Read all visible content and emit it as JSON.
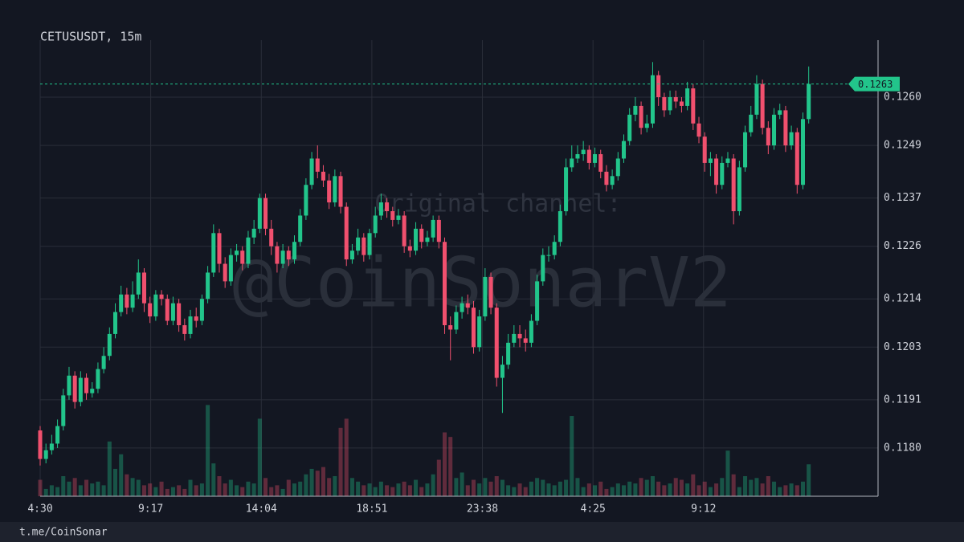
{
  "chart_data": {
    "type": "candlestick",
    "title": "CETUSUSDT, 15m",
    "watermark": [
      "Original channel:",
      "@CoinSonarV2"
    ],
    "footer": "t.me/CoinSonar",
    "up_color": "#22c58b",
    "down_color": "#f0506e",
    "grid": true,
    "xlim": [
      0,
      145
    ],
    "xticks": [
      {
        "value": 0,
        "label": "4:30"
      },
      {
        "value": 19.13,
        "label": "9:17"
      },
      {
        "value": 38.27,
        "label": "14:04"
      },
      {
        "value": 57.4,
        "label": "18:51"
      },
      {
        "value": 76.53,
        "label": "23:38"
      },
      {
        "value": 95.67,
        "label": "4:25"
      },
      {
        "value": 114.8,
        "label": "9:12"
      }
    ],
    "ylim": [
      0.1169,
      0.1273
    ],
    "yticks": [
      {
        "value": 0.118,
        "label": "0.1180"
      },
      0.1191,
      0.1203,
      0.1214,
      0.1226,
      0.1237,
      0.1249,
      {
        "value": 0.126,
        "label": "0.1260"
      }
    ],
    "y2lim": [
      0,
      500
    ],
    "last_price": 0.1263,
    "ohlc": [
      [
        0.1184,
        0.1185,
        0.1176,
        0.11775
      ],
      [
        0.11775,
        0.1181,
        0.11765,
        0.11795
      ],
      [
        0.11795,
        0.1183,
        0.11785,
        0.1181
      ],
      [
        0.1181,
        0.11865,
        0.118,
        0.1185
      ],
      [
        0.1185,
        0.11935,
        0.1184,
        0.1192
      ],
      [
        0.1192,
        0.11985,
        0.1191,
        0.11965
      ],
      [
        0.11965,
        0.11975,
        0.1189,
        0.11905
      ],
      [
        0.11905,
        0.11975,
        0.11895,
        0.1196
      ],
      [
        0.1196,
        0.1197,
        0.1191,
        0.11925
      ],
      [
        0.11925,
        0.1195,
        0.11915,
        0.11935
      ],
      [
        0.11935,
        0.11995,
        0.11925,
        0.1198
      ],
      [
        0.1198,
        0.1203,
        0.1197,
        0.1201
      ],
      [
        0.1201,
        0.12075,
        0.12,
        0.1206
      ],
      [
        0.1206,
        0.1213,
        0.1205,
        0.1211
      ],
      [
        0.1211,
        0.1217,
        0.121,
        0.1215
      ],
      [
        0.1215,
        0.12165,
        0.12105,
        0.1212
      ],
      [
        0.1212,
        0.1218,
        0.1211,
        0.1215
      ],
      [
        0.1215,
        0.1223,
        0.1214,
        0.122
      ],
      [
        0.122,
        0.1221,
        0.1211,
        0.1213
      ],
      [
        0.1213,
        0.12145,
        0.12085,
        0.121
      ],
      [
        0.121,
        0.1216,
        0.1209,
        0.1215
      ],
      [
        0.1215,
        0.1216,
        0.12125,
        0.1214
      ],
      [
        0.1214,
        0.1215,
        0.1208,
        0.1209
      ],
      [
        0.1209,
        0.12145,
        0.1208,
        0.1213
      ],
      [
        0.1213,
        0.1214,
        0.12065,
        0.1208
      ],
      [
        0.1208,
        0.12095,
        0.12045,
        0.1206
      ],
      [
        0.1206,
        0.12115,
        0.1205,
        0.121
      ],
      [
        0.121,
        0.1212,
        0.12075,
        0.1209
      ],
      [
        0.1209,
        0.1215,
        0.1208,
        0.1214
      ],
      [
        0.1214,
        0.12215,
        0.1213,
        0.122
      ],
      [
        0.122,
        0.1231,
        0.1219,
        0.1229
      ],
      [
        0.1229,
        0.123,
        0.122,
        0.1222
      ],
      [
        0.1222,
        0.12235,
        0.12165,
        0.1218
      ],
      [
        0.1218,
        0.12255,
        0.1217,
        0.1224
      ],
      [
        0.1224,
        0.12265,
        0.12225,
        0.1225
      ],
      [
        0.1225,
        0.1226,
        0.12205,
        0.1222
      ],
      [
        0.1222,
        0.12295,
        0.1221,
        0.1228
      ],
      [
        0.1228,
        0.1232,
        0.12265,
        0.123
      ],
      [
        0.123,
        0.1238,
        0.1229,
        0.1237
      ],
      [
        0.1237,
        0.1238,
        0.12285,
        0.123
      ],
      [
        0.123,
        0.1232,
        0.1224,
        0.1226
      ],
      [
        0.1226,
        0.1227,
        0.122,
        0.1222
      ],
      [
        0.1222,
        0.12265,
        0.1221,
        0.1225
      ],
      [
        0.1225,
        0.1226,
        0.12215,
        0.1223
      ],
      [
        0.1223,
        0.12285,
        0.1222,
        0.1227
      ],
      [
        0.1227,
        0.12345,
        0.1226,
        0.1233
      ],
      [
        0.1233,
        0.12415,
        0.1232,
        0.124
      ],
      [
        0.124,
        0.12475,
        0.1239,
        0.1246
      ],
      [
        0.1246,
        0.1249,
        0.12415,
        0.1243
      ],
      [
        0.1243,
        0.12445,
        0.12395,
        0.1241
      ],
      [
        0.1241,
        0.12425,
        0.12345,
        0.1236
      ],
      [
        0.1236,
        0.12435,
        0.1235,
        0.1242
      ],
      [
        0.1242,
        0.1243,
        0.12335,
        0.1235
      ],
      [
        0.1235,
        0.1236,
        0.12215,
        0.1223
      ],
      [
        0.1223,
        0.12265,
        0.1222,
        0.1225
      ],
      [
        0.1225,
        0.123,
        0.1224,
        0.1228
      ],
      [
        0.1228,
        0.1229,
        0.12225,
        0.1224
      ],
      [
        0.1224,
        0.123,
        0.1223,
        0.1229
      ],
      [
        0.1229,
        0.1235,
        0.1228,
        0.1233
      ],
      [
        0.1233,
        0.1238,
        0.1232,
        0.1236
      ],
      [
        0.1236,
        0.1237,
        0.12325,
        0.1234
      ],
      [
        0.1234,
        0.1235,
        0.12305,
        0.1232
      ],
      [
        0.1232,
        0.12345,
        0.1231,
        0.1233
      ],
      [
        0.1233,
        0.1234,
        0.12245,
        0.1226
      ],
      [
        0.1226,
        0.12275,
        0.12235,
        0.1225
      ],
      [
        0.1225,
        0.12315,
        0.1224,
        0.123
      ],
      [
        0.123,
        0.1231,
        0.12255,
        0.1227
      ],
      [
        0.1227,
        0.12295,
        0.1226,
        0.1228
      ],
      [
        0.1228,
        0.1233,
        0.1227,
        0.1232
      ],
      [
        0.1232,
        0.1233,
        0.12255,
        0.1227
      ],
      [
        0.1227,
        0.1228,
        0.1206,
        0.1208
      ],
      [
        0.1208,
        0.121,
        0.12,
        0.1207
      ],
      [
        0.1207,
        0.12125,
        0.1206,
        0.1211
      ],
      [
        0.1211,
        0.12145,
        0.12095,
        0.1213
      ],
      [
        0.1213,
        0.1215,
        0.12105,
        0.1212
      ],
      [
        0.1212,
        0.12135,
        0.12015,
        0.1203
      ],
      [
        0.1203,
        0.12115,
        0.1202,
        0.121
      ],
      [
        0.121,
        0.1221,
        0.1209,
        0.1219
      ],
      [
        0.1219,
        0.122,
        0.12105,
        0.1212
      ],
      [
        0.1212,
        0.1213,
        0.1194,
        0.1196
      ],
      [
        0.1196,
        0.1201,
        0.1188,
        0.1199
      ],
      [
        0.1199,
        0.1206,
        0.1198,
        0.1204
      ],
      [
        0.1204,
        0.1208,
        0.1203,
        0.1206
      ],
      [
        0.1206,
        0.1208,
        0.1203,
        0.1205
      ],
      [
        0.1205,
        0.1207,
        0.1202,
        0.1204
      ],
      [
        0.1204,
        0.12105,
        0.1203,
        0.1209
      ],
      [
        0.1209,
        0.12195,
        0.1208,
        0.1218
      ],
      [
        0.1218,
        0.12255,
        0.1217,
        0.1224
      ],
      [
        0.1224,
        0.1226,
        0.12225,
        0.1224
      ],
      [
        0.1224,
        0.12285,
        0.1223,
        0.1227
      ],
      [
        0.1227,
        0.12355,
        0.1226,
        0.1234
      ],
      [
        0.1234,
        0.1246,
        0.1233,
        0.1244
      ],
      [
        0.1244,
        0.1249,
        0.1243,
        0.1246
      ],
      [
        0.1246,
        0.1249,
        0.1245,
        0.1247
      ],
      [
        0.1247,
        0.125,
        0.12455,
        0.1248
      ],
      [
        0.1248,
        0.1249,
        0.12435,
        0.1245
      ],
      [
        0.1245,
        0.12485,
        0.1244,
        0.1247
      ],
      [
        0.1247,
        0.1248,
        0.12415,
        0.1243
      ],
      [
        0.1243,
        0.12445,
        0.12385,
        0.124
      ],
      [
        0.124,
        0.12435,
        0.1239,
        0.1242
      ],
      [
        0.1242,
        0.12475,
        0.1241,
        0.1246
      ],
      [
        0.1246,
        0.12515,
        0.1245,
        0.125
      ],
      [
        0.125,
        0.12575,
        0.1249,
        0.1256
      ],
      [
        0.1256,
        0.126,
        0.12545,
        0.1258
      ],
      [
        0.1258,
        0.1259,
        0.12515,
        0.1253
      ],
      [
        0.1253,
        0.1256,
        0.1252,
        0.1254
      ],
      [
        0.1254,
        0.1268,
        0.1253,
        0.1265
      ],
      [
        0.1265,
        0.1266,
        0.1258,
        0.126
      ],
      [
        0.126,
        0.1261,
        0.12555,
        0.1257
      ],
      [
        0.1257,
        0.12615,
        0.1256,
        0.126
      ],
      [
        0.126,
        0.12615,
        0.12575,
        0.1259
      ],
      [
        0.1259,
        0.126,
        0.12565,
        0.1258
      ],
      [
        0.1258,
        0.12635,
        0.1257,
        0.1262
      ],
      [
        0.1262,
        0.1263,
        0.12525,
        0.1254
      ],
      [
        0.1254,
        0.12555,
        0.12495,
        0.1251
      ],
      [
        0.1251,
        0.1252,
        0.1243,
        0.1245
      ],
      [
        0.1245,
        0.12475,
        0.1242,
        0.1246
      ],
      [
        0.1246,
        0.1247,
        0.1238,
        0.124
      ],
      [
        0.124,
        0.12465,
        0.1239,
        0.1245
      ],
      [
        0.1245,
        0.12475,
        0.1244,
        0.1246
      ],
      [
        0.1246,
        0.1247,
        0.1231,
        0.1234
      ],
      [
        0.1234,
        0.12455,
        0.1233,
        0.1244
      ],
      [
        0.1244,
        0.12535,
        0.1243,
        0.1252
      ],
      [
        0.1252,
        0.1258,
        0.1251,
        0.1256
      ],
      [
        0.1256,
        0.1265,
        0.1255,
        0.1263
      ],
      [
        0.1263,
        0.1264,
        0.12515,
        0.1253
      ],
      [
        0.1253,
        0.12545,
        0.1247,
        0.1249
      ],
      [
        0.1249,
        0.12575,
        0.1248,
        0.1256
      ],
      [
        0.1256,
        0.12585,
        0.1255,
        0.1257
      ],
      [
        0.1257,
        0.1258,
        0.12475,
        0.1249
      ],
      [
        0.1249,
        0.12535,
        0.1248,
        0.1252
      ],
      [
        0.1252,
        0.1253,
        0.1238,
        0.124
      ],
      [
        0.124,
        0.12565,
        0.1239,
        0.1255
      ],
      [
        0.1255,
        0.1267,
        0.1254,
        0.1263
      ]
    ],
    "volume": [
      18,
      8,
      12,
      10,
      22,
      16,
      20,
      12,
      18,
      14,
      16,
      12,
      60,
      30,
      46,
      24,
      20,
      18,
      12,
      14,
      10,
      16,
      8,
      10,
      12,
      8,
      18,
      12,
      14,
      100,
      36,
      22,
      14,
      18,
      12,
      10,
      16,
      14,
      85,
      20,
      10,
      12,
      8,
      18,
      14,
      16,
      24,
      30,
      28,
      32,
      20,
      22,
      75,
      85,
      20,
      16,
      12,
      14,
      10,
      16,
      12,
      10,
      14,
      16,
      12,
      18,
      10,
      14,
      24,
      40,
      70,
      65,
      20,
      26,
      12,
      18,
      14,
      20,
      16,
      22,
      18,
      12,
      10,
      14,
      10,
      16,
      20,
      18,
      14,
      12,
      16,
      18,
      88,
      20,
      10,
      14,
      12,
      16,
      8,
      10,
      14,
      12,
      16,
      14,
      20,
      18,
      22,
      16,
      12,
      14,
      20,
      18,
      14,
      24,
      12,
      16,
      10,
      14,
      20,
      50,
      24,
      10,
      22,
      18,
      20,
      14,
      22,
      16,
      10,
      12,
      14,
      12,
      16,
      35
    ]
  }
}
